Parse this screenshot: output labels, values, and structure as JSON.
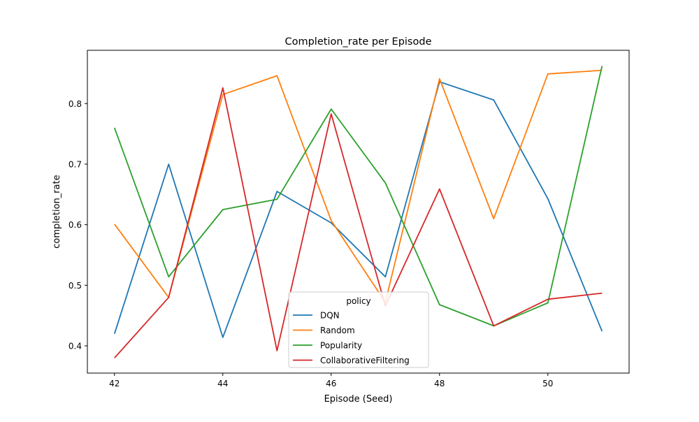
{
  "chart_data": {
    "type": "line",
    "title": "Completion_rate per Episode",
    "xlabel": "Episode (Seed)",
    "ylabel": "completion_rate",
    "x": [
      42,
      43,
      44,
      45,
      46,
      47,
      48,
      49,
      50,
      51
    ],
    "xlim": [
      41.5,
      51.5
    ],
    "ylim": [
      0.355,
      0.888
    ],
    "xticks": [
      42,
      44,
      46,
      48,
      50
    ],
    "yticks": [
      0.4,
      0.5,
      0.6,
      0.7,
      0.8
    ],
    "ytick_labels": [
      "0.4",
      "0.5",
      "0.6",
      "0.7",
      "0.8"
    ],
    "grid": false,
    "legend": {
      "title": "policy",
      "placement": "lower-center"
    },
    "series": [
      {
        "name": "DQN",
        "color": "#1f77b4",
        "values": [
          0.42,
          0.7,
          0.414,
          0.655,
          0.603,
          0.514,
          0.836,
          0.806,
          0.643,
          0.424
        ]
      },
      {
        "name": "Random",
        "color": "#ff7f0e",
        "values": [
          0.601,
          0.48,
          0.815,
          0.846,
          0.607,
          0.472,
          0.841,
          0.61,
          0.849,
          0.855
        ]
      },
      {
        "name": "Popularity",
        "color": "#2ca02c",
        "values": [
          0.76,
          0.514,
          0.625,
          0.642,
          0.791,
          0.669,
          0.468,
          0.433,
          0.471,
          0.862
        ]
      },
      {
        "name": "CollaborativeFiltering",
        "color": "#d62728",
        "values": [
          0.38,
          0.48,
          0.826,
          0.392,
          0.783,
          0.466,
          0.659,
          0.433,
          0.477,
          0.487
        ]
      }
    ]
  }
}
